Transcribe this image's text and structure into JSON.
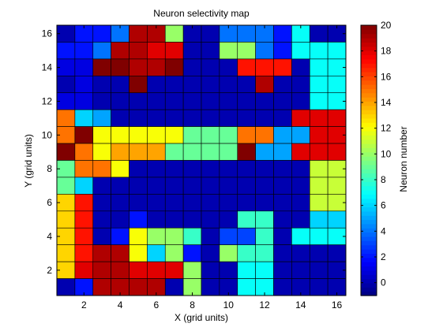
{
  "chart_data": {
    "type": "heatmap",
    "title": "Neuron selectivity map",
    "xlabel": "X (grid units)",
    "ylabel": "Y (grid units)",
    "colorbar_label": "Neuron number",
    "colormap": "jet",
    "xlim": [
      0.5,
      16.5
    ],
    "ylim": [
      0.5,
      16.5
    ],
    "clim": [
      -1,
      20
    ],
    "x_ticks": [
      2,
      4,
      6,
      8,
      10,
      12,
      14,
      16
    ],
    "y_ticks": [
      2,
      4,
      6,
      8,
      10,
      12,
      14,
      16
    ],
    "colorbar_ticks": [
      0,
      2,
      4,
      6,
      8,
      10,
      12,
      14,
      16,
      18,
      20
    ],
    "grid": true,
    "rows_note": "rows listed from y=16 (top) down to y=1 (bottom); columns x=1..16",
    "rows": [
      [
        0,
        2,
        2,
        4,
        19,
        19,
        10,
        0,
        0,
        4,
        4,
        4,
        2,
        7,
        0,
        0
      ],
      [
        2,
        2,
        4,
        19,
        19,
        18,
        18,
        0,
        0,
        10,
        10,
        4,
        2,
        7,
        7,
        7
      ],
      [
        1,
        1,
        20,
        20,
        19,
        19,
        20,
        0,
        0,
        0,
        17,
        17,
        17,
        0,
        7,
        7
      ],
      [
        0,
        1,
        0,
        0,
        20,
        0,
        0,
        0,
        0,
        0,
        0,
        19,
        0,
        0,
        7,
        7
      ],
      [
        1,
        1,
        0,
        0,
        0,
        0,
        0,
        0,
        0,
        0,
        0,
        0,
        0,
        0,
        7,
        7
      ],
      [
        15,
        6,
        5,
        0,
        0,
        0,
        0,
        0,
        0,
        0,
        0,
        0,
        0,
        18,
        18,
        18
      ],
      [
        15,
        20,
        12,
        12,
        12,
        12,
        12,
        9,
        9,
        9,
        15,
        15,
        5,
        5,
        18,
        18
      ],
      [
        20,
        15,
        12,
        14,
        14,
        14,
        9,
        9,
        9,
        9,
        20,
        5,
        5,
        18,
        18,
        18
      ],
      [
        9,
        15,
        15,
        12,
        0,
        0,
        0,
        0,
        0,
        0,
        0,
        0,
        0,
        0,
        11,
        11
      ],
      [
        9,
        6,
        0,
        0,
        0,
        0,
        0,
        0,
        0,
        0,
        0,
        0,
        0,
        0,
        11,
        11
      ],
      [
        13,
        17,
        0,
        0,
        0,
        0,
        0,
        0,
        0,
        0,
        0,
        0,
        0,
        0,
        11,
        11
      ],
      [
        13,
        17,
        0,
        0,
        2,
        0,
        0,
        0,
        0,
        0,
        8,
        8,
        0,
        0,
        6,
        6
      ],
      [
        13,
        17,
        0,
        2,
        12,
        10,
        10,
        8,
        0,
        3,
        3,
        8,
        0,
        7,
        7,
        7
      ],
      [
        13,
        17,
        19,
        19,
        12,
        6,
        10,
        2,
        0,
        10,
        8,
        8,
        0,
        0,
        0,
        0
      ],
      [
        13,
        18,
        19,
        19,
        18,
        18,
        18,
        10,
        0,
        0,
        7,
        7,
        0,
        0,
        0,
        0
      ],
      [
        0,
        2,
        19,
        19,
        19,
        19,
        0,
        10,
        0,
        0,
        7,
        7,
        0,
        0,
        0,
        0
      ]
    ]
  }
}
